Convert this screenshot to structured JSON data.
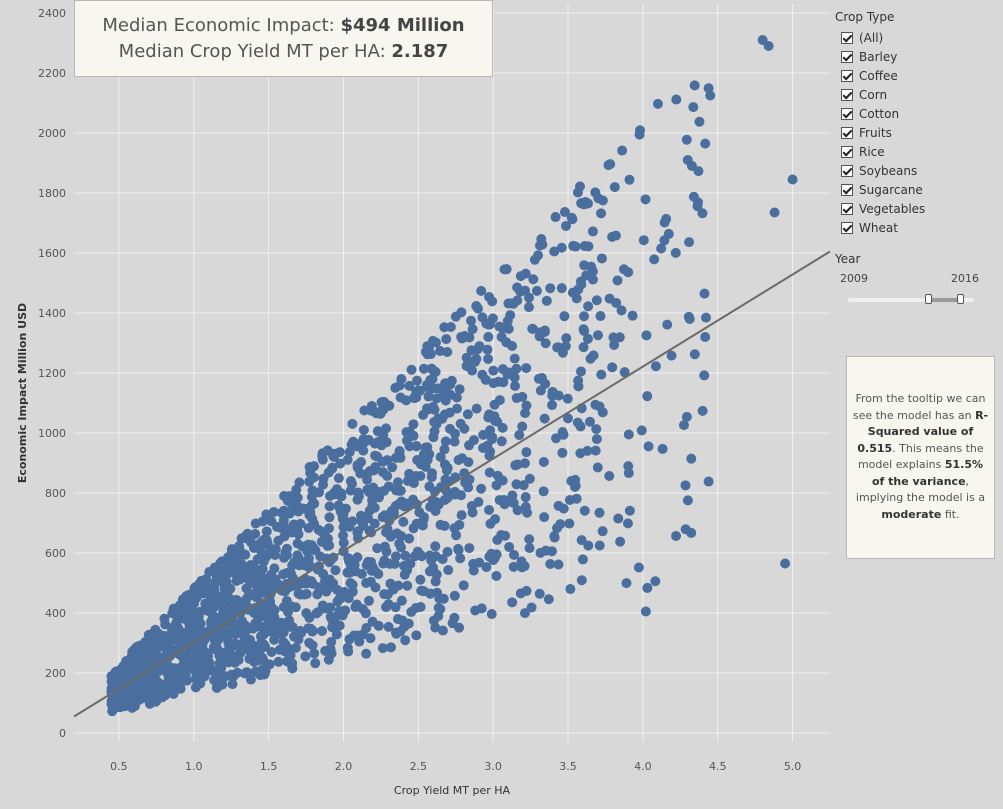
{
  "kpi": {
    "impact_label": "Median Economic Impact: ",
    "impact_value": "$494 Million",
    "yield_label": "Median Crop Yield MT per HA: ",
    "yield_value": "2.187"
  },
  "filter": {
    "title": "Crop Type",
    "items": [
      "(All)",
      "Barley",
      "Coffee",
      "Corn",
      "Cotton",
      "Fruits",
      "Rice",
      "Soybeans",
      "Sugarcane",
      "Vegetables",
      "Wheat"
    ]
  },
  "year_filter": {
    "title": "Year",
    "start": "2009",
    "end": "2016"
  },
  "note": {
    "t1": "From the tooltip we can see the model has an ",
    "b1": "R-Squared value of 0.515",
    "t2": ". This means the model explains ",
    "b2": "51.5% of the variance",
    "t3": ", implying the model is a ",
    "b3": "moderate",
    "t4": " fit."
  },
  "colors": {
    "point": "#4a6f9e",
    "trend": "#6b6b6b",
    "grid": "#f0f0f0",
    "background": "#d8d8d8"
  },
  "chart_data": {
    "type": "scatter",
    "xlabel": "Crop Yield MT per HA",
    "ylabel": "Economic Impact Million USD",
    "xlim": [
      0.2,
      5.25
    ],
    "ylim": [
      -30,
      2430
    ],
    "xticks": [
      "0.5",
      "1.0",
      "1.5",
      "2.0",
      "2.5",
      "3.0",
      "3.5",
      "4.0",
      "4.5",
      "5.0"
    ],
    "yticks": [
      "0",
      "200",
      "400",
      "600",
      "800",
      "1000",
      "1200",
      "1400",
      "1600",
      "1800",
      "2000",
      "2200",
      "2400"
    ],
    "trend_line": {
      "x": [
        0.2,
        5.25
      ],
      "y": [
        55,
        1605
      ]
    },
    "notable_points": [
      [
        4.8,
        2310
      ],
      [
        4.84,
        2290
      ],
      [
        5.0,
        1845
      ],
      [
        4.88,
        1735
      ],
      [
        4.95,
        565
      ],
      [
        4.02,
        405
      ],
      [
        4.45,
        2125
      ],
      [
        4.3,
        1910
      ]
    ],
    "generated_cloud": {
      "count": 1700,
      "seed": 7,
      "x_min": 0.45,
      "x_max": 5.0,
      "lower_slope": 80,
      "lower_intercept": 20,
      "upper_slope": 520,
      "upper_intercept": -35
    }
  }
}
